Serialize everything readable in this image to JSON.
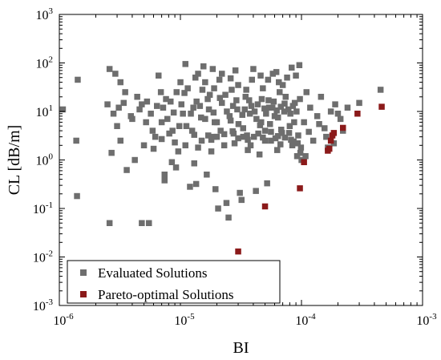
{
  "chart_data": {
    "type": "scatter",
    "xscale": "log",
    "yscale": "log",
    "xlabel": "BI",
    "ylabel": "CL [dB/m]",
    "xlim": [
      1e-06,
      0.001
    ],
    "ylim": [
      0.001,
      1000.0
    ],
    "x_ticks": [
      {
        "base": "10",
        "exp": "-6"
      },
      {
        "base": "10",
        "exp": "-5"
      },
      {
        "base": "10",
        "exp": "-4"
      },
      {
        "base": "10",
        "exp": "-3"
      }
    ],
    "y_ticks": [
      {
        "base": "10",
        "exp": "-3"
      },
      {
        "base": "10",
        "exp": "-2"
      },
      {
        "base": "10",
        "exp": "-1"
      },
      {
        "base": "10",
        "exp": "0"
      },
      {
        "base": "10",
        "exp": "1"
      },
      {
        "base": "10",
        "exp": "2"
      },
      {
        "base": "10",
        "exp": "3"
      }
    ],
    "legend_position": "bottom-left",
    "grid": false,
    "series": [
      {
        "name": "Evaluated Solutions",
        "color": "#6e6e6e",
        "marker": "square",
        "points": [
          [
            1.07e-06,
            11.0
          ],
          [
            1.42e-06,
            45.0
          ],
          [
            1.38e-06,
            2.5
          ],
          [
            1.4e-06,
            0.18
          ],
          [
            2.6e-06,
            0.05
          ],
          [
            4.8e-06,
            0.05
          ],
          [
            5.5e-06,
            0.05
          ],
          [
            2.6e-06,
            75.0
          ],
          [
            2.9e-06,
            60.0
          ],
          [
            3.2e-06,
            40.0
          ],
          [
            2.8e-06,
            9.0
          ],
          [
            3.4e-06,
            15.0
          ],
          [
            2.5e-06,
            14.0
          ],
          [
            3e-06,
            5.0
          ],
          [
            3.2e-06,
            2.5
          ],
          [
            2.7e-06,
            1.4
          ],
          [
            3.6e-06,
            0.62
          ],
          [
            4.2e-06,
            1.0
          ],
          [
            3.9e-06,
            8.0
          ],
          [
            4.4e-06,
            20.0
          ],
          [
            4.8e-06,
            14.0
          ],
          [
            5.2e-06,
            6.0
          ],
          [
            5e-06,
            2.0
          ],
          [
            5.7e-06,
            9.0
          ],
          [
            6.2e-06,
            3.0
          ],
          [
            6.6e-06,
            55.0
          ],
          [
            6.9e-06,
            25.0
          ],
          [
            7.2e-06,
            12.0
          ],
          [
            7.4e-06,
            0.5
          ],
          [
            7.4e-06,
            0.38
          ],
          [
            7.8e-06,
            7.0
          ],
          [
            8.3e-06,
            16.0
          ],
          [
            8.6e-06,
            4.0
          ],
          [
            9e-06,
            2.3
          ],
          [
            9.6e-06,
            1.5
          ],
          [
            1e-05,
            40.0
          ],
          [
            1.05e-05,
            9.0
          ],
          [
            1.1e-05,
            95.0
          ],
          [
            1.15e-05,
            30.0
          ],
          [
            1.2e-05,
            0.28
          ],
          [
            1.25e-05,
            4.0
          ],
          [
            1.3e-05,
            0.85
          ],
          [
            1.35e-05,
            0.32
          ],
          [
            1.4e-05,
            60.0
          ],
          [
            1.45e-05,
            13.0
          ],
          [
            1.5e-05,
            2.5
          ],
          [
            1.55e-05,
            85.0
          ],
          [
            1.6e-05,
            7.0
          ],
          [
            1.65e-05,
            0.5
          ],
          [
            1.7e-05,
            3.2
          ],
          [
            1.75e-05,
            22.0
          ],
          [
            1.8e-05,
            1.5
          ],
          [
            1.85e-05,
            75.0
          ],
          [
            1.9e-05,
            3.0
          ],
          [
            1.95e-05,
            0.25
          ],
          [
            2e-05,
            6.0
          ],
          [
            2.05e-05,
            0.1
          ],
          [
            2.1e-05,
            45.0
          ],
          [
            2.2e-05,
            15.0
          ],
          [
            2.3e-05,
            2.0
          ],
          [
            2.4e-05,
            0.13
          ],
          [
            2.5e-05,
            0.065
          ],
          [
            2.55e-05,
            8.0
          ],
          [
            2.65e-05,
            28.0
          ],
          [
            2.75e-05,
            3.5
          ],
          [
            2.85e-05,
            70.0
          ],
          [
            2.95e-05,
            11.0
          ],
          [
            3e-05,
            2.8
          ],
          [
            3.1e-05,
            0.21
          ],
          [
            3.2e-05,
            0.15
          ],
          [
            3.3e-05,
            4.5
          ],
          [
            3.45e-05,
            20.0
          ],
          [
            3.6e-05,
            1.6
          ],
          [
            3.75e-05,
            9.0
          ],
          [
            3.9e-05,
            45.0
          ],
          [
            4.05e-05,
            3.0
          ],
          [
            4.2e-05,
            0.23
          ],
          [
            4.35e-05,
            14.0
          ],
          [
            4.5e-05,
            1.3
          ],
          [
            4.65e-05,
            6.0
          ],
          [
            4.8e-05,
            30.0
          ],
          [
            5e-05,
            4.0
          ],
          [
            5.2e-05,
            0.33
          ],
          [
            5.4e-05,
            12.0
          ],
          [
            5.6e-05,
            2.5
          ],
          [
            5.8e-05,
            60.0
          ],
          [
            6e-05,
            8.0
          ],
          [
            6.3e-05,
            1.6
          ],
          [
            6.6e-05,
            25.0
          ],
          [
            6.9e-05,
            3.6
          ],
          [
            7.2e-05,
            10.0
          ],
          [
            7.6e-05,
            50.0
          ],
          [
            8e-05,
            5.0
          ],
          [
            8.4e-05,
            2.0
          ],
          [
            8.8e-05,
            15.0
          ],
          [
            9.2e-05,
            1.2
          ],
          [
            9.6e-05,
            90.0
          ],
          [
            0.0001,
            1.0
          ],
          [
            0.000105,
            6.0
          ],
          [
            0.00011,
            25.0
          ],
          [
            0.000118,
            12.0
          ],
          [
            0.000125,
            2.5
          ],
          [
            0.000135,
            8.0
          ],
          [
            0.000145,
            20.0
          ],
          [
            0.000155,
            4.5
          ],
          [
            0.000165,
            1.8
          ],
          [
            0.000175,
            10.0
          ],
          [
            0.00019,
            14.0
          ],
          [
            0.00021,
            7.0
          ],
          [
            0.00024,
            12.0
          ],
          [
            0.0003,
            15.0
          ],
          [
            0.00045,
            28.0
          ],
          [
            1.12e-05,
            5.0
          ],
          [
            1.28e-05,
            12.0
          ],
          [
            1.48e-05,
            7.5
          ],
          [
            1.68e-05,
            18.0
          ],
          [
            1.88e-05,
            9.5
          ],
          [
            2.15e-05,
            4.0
          ],
          [
            2.35e-05,
            22.0
          ],
          [
            2.6e-05,
            6.5
          ],
          [
            2.9e-05,
            17.0
          ],
          [
            3.25e-05,
            8.5
          ],
          [
            3.55e-05,
            3.2
          ],
          [
            3.85e-05,
            13.0
          ],
          [
            4.25e-05,
            7.0
          ],
          [
            4.7e-05,
            18.0
          ],
          [
            5.1e-05,
            9.0
          ],
          [
            5.5e-05,
            5.5
          ],
          [
            5.9e-05,
            16.0
          ],
          [
            6.4e-05,
            7.5
          ],
          [
            6.8e-05,
            4.2
          ],
          [
            7.4e-05,
            20.0
          ],
          [
            8.1e-05,
            9.0
          ],
          [
            8.7e-05,
            6.0
          ],
          [
            9.4e-05,
            3.2
          ],
          [
            1.6e-05,
            40.0
          ],
          [
            2.2e-05,
            60.0
          ],
          [
            3e-05,
            35.0
          ],
          [
            4e-05,
            75.0
          ],
          [
            5.3e-05,
            45.0
          ],
          [
            6.2e-05,
            65.0
          ],
          [
            7e-05,
            35.0
          ],
          [
            8.3e-05,
            80.0
          ],
          [
            9e-05,
            55.0
          ],
          [
            1.33e-05,
            50.0
          ],
          [
            1.9e-05,
            30.0
          ],
          [
            2.6e-05,
            48.0
          ],
          [
            3.5e-05,
            28.0
          ],
          [
            4.6e-05,
            55.0
          ],
          [
            6.5e-05,
            40.0
          ],
          [
            1.1e-05,
            2.0
          ],
          [
            1.4e-05,
            1.8
          ],
          [
            1.8e-05,
            2.6
          ],
          [
            2.3e-05,
            3.4
          ],
          [
            2.8e-05,
            2.2
          ],
          [
            3.3e-05,
            3.0
          ],
          [
            3.8e-05,
            2.0
          ],
          [
            4.4e-05,
            3.5
          ],
          [
            5e-05,
            2.5
          ],
          [
            5.6e-05,
            3.8
          ],
          [
            6.1e-05,
            2.8
          ],
          [
            6.7e-05,
            2.1
          ],
          [
            7.3e-05,
            2.9
          ],
          [
            7.9e-05,
            3.6
          ],
          [
            8.6e-05,
            2.4
          ],
          [
            9.3e-05,
            2.2
          ],
          [
            1.3e-05,
            3.3
          ],
          [
            2e-05,
            3.0
          ],
          [
            2.7e-05,
            3.9
          ],
          [
            3.6e-05,
            2.6
          ],
          [
            4.8e-05,
            2.9
          ],
          [
            6.4e-05,
            3.1
          ],
          [
            8.2e-05,
            2.6
          ],
          [
            9.8e-05,
            1.4
          ],
          [
            9.9e-05,
            1.8
          ],
          [
            0.000108,
            1.2
          ],
          [
            0.000115,
            3.8
          ],
          [
            0.00014,
            5.5
          ],
          [
            0.00016,
            3.0
          ],
          [
            0.000185,
            2.2
          ],
          [
            0.0002,
            9.0
          ],
          [
            0.00022,
            4.0
          ],
          [
            3.1e-06,
            12.0
          ],
          [
            3.5e-06,
            25.0
          ],
          [
            4e-06,
            7.0
          ],
          [
            4.6e-06,
            11.0
          ],
          [
            5.3e-06,
            16.0
          ],
          [
            5.9e-06,
            4.0
          ],
          [
            6.4e-06,
            13.0
          ],
          [
            7e-06,
            6.0
          ],
          [
            7.6e-06,
            18.0
          ],
          [
            8.1e-06,
            3.5
          ],
          [
            8.8e-06,
            9.5
          ],
          [
            9.3e-06,
            25.0
          ],
          [
            9.8e-06,
            5.0
          ],
          [
            8.5e-06,
            0.9
          ],
          [
            9.2e-06,
            0.7
          ],
          [
            6e-06,
            1.7
          ],
          [
            7e-06,
            2.7
          ],
          [
            1.02e-05,
            14.0
          ],
          [
            1.08e-05,
            24.0
          ],
          [
            1.22e-05,
            9.0
          ],
          [
            1.36e-05,
            16.0
          ],
          [
            1.52e-05,
            28.0
          ],
          [
            1.72e-05,
            11.0
          ],
          [
            1.92e-05,
            6.0
          ],
          [
            2.12e-05,
            19.0
          ],
          [
            2.42e-05,
            10.0
          ],
          [
            2.72e-05,
            13.0
          ],
          [
            3.02e-05,
            5.5
          ],
          [
            3.4e-05,
            11.0
          ],
          [
            3.7e-05,
            17.0
          ],
          [
            4.1e-05,
            10.0
          ],
          [
            4.55e-05,
            5.2
          ],
          [
            4.95e-05,
            11.5
          ],
          [
            5.35e-05,
            17.0
          ],
          [
            5.75e-05,
            12.0
          ],
          [
            6.25e-05,
            10.5
          ],
          [
            6.75e-05,
            12.5
          ],
          [
            7.25e-05,
            14.5
          ],
          [
            7.8e-05,
            11.0
          ],
          [
            8.5e-05,
            13.0
          ],
          [
            9.1e-05,
            10.0
          ],
          [
            9.7e-05,
            18.0
          ]
        ]
      },
      {
        "name": "Pareto-optimal Solutions",
        "color": "#8b1a1a",
        "marker": "square",
        "points": [
          [
            3e-05,
            0.013
          ],
          [
            5e-05,
            0.11
          ],
          [
            9.7e-05,
            0.26
          ],
          [
            0.000105,
            0.9
          ],
          [
            0.000165,
            1.55
          ],
          [
            0.00017,
            1.7
          ],
          [
            0.000175,
            2.5
          ],
          [
            0.00018,
            3.2
          ],
          [
            0.000185,
            3.6
          ],
          [
            0.00022,
            4.6
          ],
          [
            0.00029,
            9.0
          ],
          [
            0.00046,
            12.5
          ]
        ]
      }
    ]
  }
}
